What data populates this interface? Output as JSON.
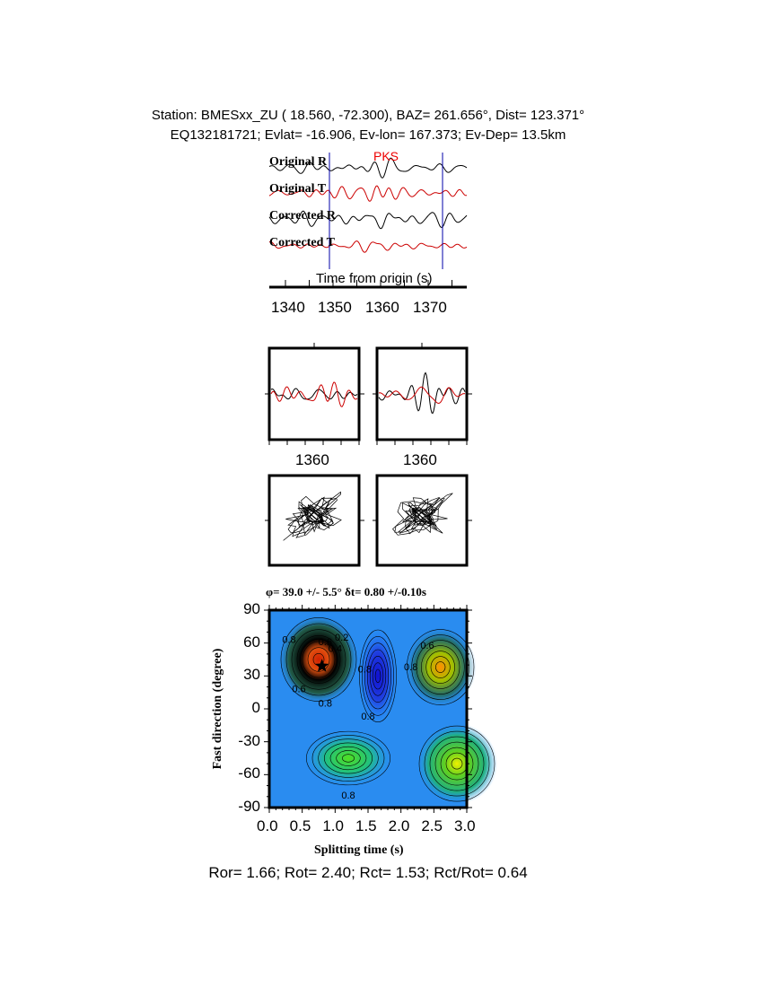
{
  "header": {
    "line1": "Station: BMESxx_ZU (  18.560,  -72.300), BAZ=  261.656°, Dist=  123.371°",
    "line2": "EQ132181721; Evlat= -16.906, Ev-lon= 167.373; Ev-Dep= 13.5km"
  },
  "chart_data": [
    {
      "type": "line",
      "name": "seismograms",
      "traces": [
        "Original R",
        "Original T",
        "Corrected R",
        "Corrected T"
      ],
      "phase_label": "PKS",
      "xlabel": "Time from origin (s)",
      "xticks": [
        "1340",
        "1350",
        "1360",
        "1370"
      ],
      "colors": {
        "R": "#000000",
        "T": "#cc0000",
        "window": "#0000aa"
      }
    },
    {
      "type": "line",
      "name": "window-comparison",
      "panels": 2,
      "xticks": [
        "1360",
        "1360"
      ]
    },
    {
      "type": "line",
      "name": "particle-motion",
      "panels": 2
    },
    {
      "type": "heatmap",
      "title": "φ= 39.0 +/- 5.5° δt= 0.80 +/-0.10s",
      "xlabel": "Splitting time (s)",
      "ylabel": "Fast direction (degree)",
      "xlim": [
        0,
        3
      ],
      "ylim": [
        -90,
        90
      ],
      "xticks": [
        "0.0",
        "0.5",
        "1.0",
        "1.5",
        "2.0",
        "2.5",
        "3.0"
      ],
      "yticks": [
        "90",
        "60",
        "30",
        "0",
        "-30",
        "-60",
        "-90"
      ],
      "contour_labels": [
        "0.8",
        "0.6",
        "0.4",
        "0.2",
        "0.6",
        "0.8",
        "0.8",
        "0.8",
        "0.6",
        "0.8",
        "0.8"
      ],
      "best": {
        "dt": 0.8,
        "phi": 39.0
      }
    }
  ],
  "footer": "Ror= 1.66; Rot= 2.40; Rct= 1.53; Rct/Rot= 0.64"
}
